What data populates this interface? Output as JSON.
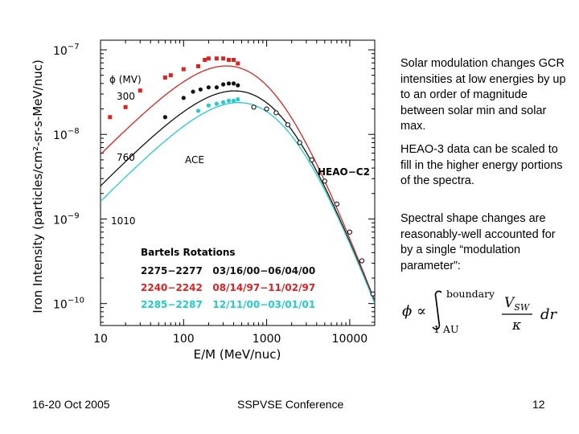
{
  "chart_data": {
    "type": "scatter",
    "xlabel": "E/M (MeV/nuc)",
    "ylabel": "Iron Intensity (particles/cm²-sr-s-MeV/nuc)",
    "xscale": "log",
    "yscale": "log",
    "xlim": [
      10,
      20000
    ],
    "ylim": [
      5.5e-11,
      1.3e-07
    ],
    "x_ticks": [
      {
        "value": 10,
        "label": "10"
      },
      {
        "value": 100,
        "label": "100"
      },
      {
        "value": 1000,
        "label": "1000"
      },
      {
        "value": 10000,
        "label": "10000"
      }
    ],
    "y_ticks": [
      {
        "value": 1e-07,
        "base": "10",
        "exp": "−7"
      },
      {
        "value": 1e-08,
        "base": "10",
        "exp": "−8"
      },
      {
        "value": 1e-09,
        "base": "10",
        "exp": "−9"
      },
      {
        "value": 1e-10,
        "base": "10",
        "exp": "−10"
      }
    ],
    "series": [
      {
        "color": "#dd2222",
        "marker": "square",
        "points": [
          [
            13,
            1.6e-08
          ],
          [
            20,
            2.1e-08
          ],
          [
            30,
            3.3e-08
          ],
          [
            60,
            4.7e-08
          ],
          [
            70,
            5e-08
          ],
          [
            100,
            5.9e-08
          ],
          [
            150,
            6.4e-08
          ],
          [
            180,
            7.6e-08
          ],
          [
            200,
            7.9e-08
          ],
          [
            250,
            7.9e-08
          ],
          [
            300,
            7.9e-08
          ],
          [
            350,
            7.6e-08
          ],
          [
            400,
            7.6e-08
          ],
          [
            450,
            6.9e-08
          ]
        ]
      },
      {
        "color": "#111111",
        "marker": "circle",
        "points": [
          [
            60,
            1.6e-08
          ],
          [
            100,
            2.7e-08
          ],
          [
            130,
            3.2e-08
          ],
          [
            160,
            3.4e-08
          ],
          [
            200,
            3.6e-08
          ],
          [
            250,
            3.6e-08
          ],
          [
            300,
            3.9e-08
          ],
          [
            350,
            4e-08
          ],
          [
            400,
            4e-08
          ],
          [
            450,
            3.8e-08
          ]
        ]
      },
      {
        "color": "#22cccc",
        "marker": "circle",
        "points": [
          [
            150,
            1.9e-08
          ],
          [
            200,
            2.2e-08
          ],
          [
            250,
            2.3e-08
          ],
          [
            300,
            2.4e-08
          ],
          [
            350,
            2.5e-08
          ],
          [
            400,
            2.5e-08
          ],
          [
            450,
            2.6e-08
          ]
        ]
      },
      {
        "color": "#000000",
        "marker": "open-circle",
        "points": [
          [
            700,
            2.1e-08
          ],
          [
            1000,
            2e-08
          ],
          [
            1300,
            1.8e-08
          ],
          [
            1800,
            1.3e-08
          ],
          [
            2500,
            8e-09
          ],
          [
            3500,
            5e-09
          ],
          [
            5000,
            2.8e-09
          ],
          [
            7000,
            1.5e-09
          ],
          [
            10000,
            7e-10
          ],
          [
            14000,
            3.2e-10
          ],
          [
            19000,
            1.3e-10
          ]
        ]
      }
    ],
    "curves": [
      {
        "color": "#dd2222",
        "label": "300",
        "phi": 300
      },
      {
        "color": "#111111",
        "label": "760",
        "phi": 760
      },
      {
        "color": "#22cccc",
        "label": "1010",
        "phi": 1010
      }
    ],
    "annotations": {
      "phi_label": "ϕ (MV)",
      "ace": "ACE",
      "heao": "HEAO−C2",
      "legend_title": "Bartels Rotations",
      "legend_rows": [
        {
          "color": "#111111",
          "text": "2275−2277   03/16/00−06/04/00"
        },
        {
          "color": "#dd2222",
          "text": "2240−2242   08/14/97−11/02/97"
        },
        {
          "color": "#22cccc",
          "text": "2285−2287   12/11/00−03/01/01"
        }
      ]
    }
  },
  "side": {
    "p1": "Solar modulation changes GCR intensities at low energies by up to an order of magnitude between solar min and solar max.",
    "p2": "HEAO-3 data can be scaled to fill in the higher energy portions of the spectra.",
    "p3": "Spectral shape changes are reasonably-well accounted for by a single “modulation parameter”:"
  },
  "formula": {
    "phi": "ϕ ∝",
    "upper": "boundary",
    "lower": "1 AU",
    "numerator": "V",
    "numerator_sub": "SW",
    "denominator": "κ",
    "differential": "dr"
  },
  "footer": {
    "left": "16-20 Oct 2005",
    "center": "SSPVSE Conference",
    "right": "12"
  }
}
